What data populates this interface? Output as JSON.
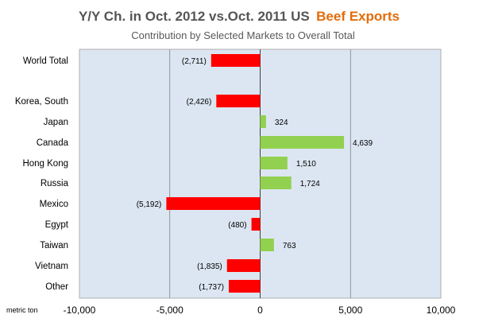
{
  "chart_data": {
    "type": "bar",
    "orientation": "horizontal",
    "title_prefix": "Y/Y Ch.  in Oct. 2012 vs.Oct. 2011 US",
    "title_highlight": "Beef Exports",
    "subtitle": "Contribution  by Selected Markets to Overall Total",
    "unit_label": "metric ton",
    "xlim": [
      -10000,
      10000
    ],
    "xticks": [
      -10000,
      -5000,
      0,
      5000,
      10000
    ],
    "xtick_labels": [
      "-10,000",
      "-5,000",
      "0",
      "5,000",
      "10,000"
    ],
    "categories": [
      "World Total",
      "Korea, South",
      "Japan",
      "Canada",
      "Hong Kong",
      "Russia",
      "Mexico",
      "Egypt",
      "Taiwan",
      "Vietnam",
      "Other"
    ],
    "values": [
      -2711,
      -2426,
      324,
      4639,
      1510,
      1724,
      -5192,
      -480,
      763,
      -1835,
      -1737
    ],
    "value_labels": [
      "(2,711)",
      "(2,426)",
      "324",
      "4,639",
      "1,510",
      "1,724",
      "(5,192)",
      "(480)",
      "763",
      "(1,835)",
      "(1,737)"
    ],
    "colors": {
      "negative": "#FF0000",
      "positive": "#92D050",
      "plot_background": "#DCE6F2",
      "gridline": "#808080",
      "title_accent": "#E46C0A"
    },
    "grid": true,
    "legend": "none"
  }
}
